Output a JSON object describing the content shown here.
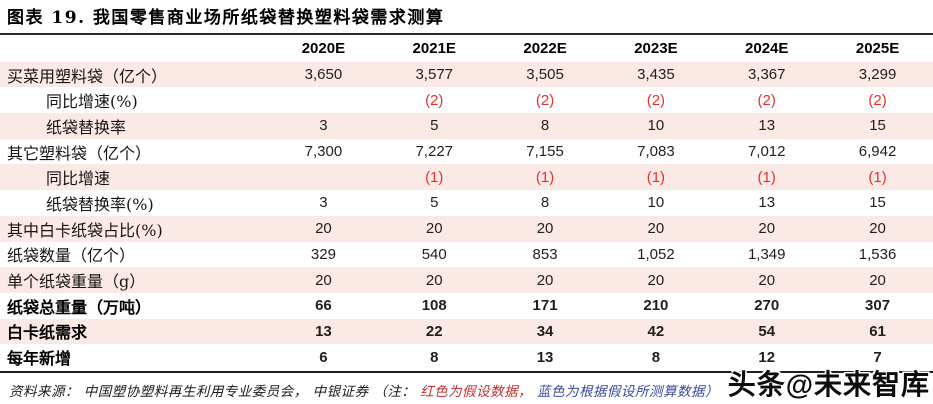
{
  "title": "图表 19. 我国零售商业场所纸袋替换塑料袋需求测算",
  "table": {
    "columns": [
      "2020E",
      "2021E",
      "2022E",
      "2023E",
      "2024E",
      "2025E"
    ],
    "rows": [
      {
        "label": "买菜用塑料袋（亿个）",
        "values": [
          "3,650",
          "3,577",
          "3,505",
          "3,435",
          "3,367",
          "3,299"
        ],
        "indent": false,
        "shaded": true,
        "bold": false,
        "red": false
      },
      {
        "label": "同比增速(%)",
        "values": [
          "",
          "(2)",
          "(2)",
          "(2)",
          "(2)",
          "(2)"
        ],
        "indent": true,
        "shaded": false,
        "bold": false,
        "red": true
      },
      {
        "label": "纸袋替换率",
        "values": [
          "3",
          "5",
          "8",
          "10",
          "13",
          "15"
        ],
        "indent": true,
        "shaded": true,
        "bold": false,
        "red": false
      },
      {
        "label": "其它塑料袋（亿个）",
        "values": [
          "7,300",
          "7,227",
          "7,155",
          "7,083",
          "7,012",
          "6,942"
        ],
        "indent": false,
        "shaded": false,
        "bold": false,
        "red": false
      },
      {
        "label": "同比增速",
        "values": [
          "",
          "(1)",
          "(1)",
          "(1)",
          "(1)",
          "(1)"
        ],
        "indent": true,
        "shaded": true,
        "bold": false,
        "red": true
      },
      {
        "label": "纸袋替换率(%)",
        "values": [
          "3",
          "5",
          "8",
          "10",
          "13",
          "15"
        ],
        "indent": true,
        "shaded": false,
        "bold": false,
        "red": false
      },
      {
        "label": "其中白卡纸袋占比(%)",
        "values": [
          "20",
          "20",
          "20",
          "20",
          "20",
          "20"
        ],
        "indent": false,
        "shaded": true,
        "bold": false,
        "red": false
      },
      {
        "label": "纸袋数量（亿个）",
        "values": [
          "329",
          "540",
          "853",
          "1,052",
          "1,349",
          "1,536"
        ],
        "indent": false,
        "shaded": false,
        "bold": false,
        "red": false
      },
      {
        "label": "单个纸袋重量（g）",
        "values": [
          "20",
          "20",
          "20",
          "20",
          "20",
          "20"
        ],
        "indent": false,
        "shaded": true,
        "bold": false,
        "red": false
      },
      {
        "label": "纸袋总重量（万吨）",
        "values": [
          "66",
          "108",
          "171",
          "210",
          "270",
          "307"
        ],
        "indent": false,
        "shaded": false,
        "bold": true,
        "red": false
      },
      {
        "label": "白卡纸需求",
        "values": [
          "13",
          "22",
          "34",
          "42",
          "54",
          "61"
        ],
        "indent": false,
        "shaded": true,
        "bold": true,
        "red": false
      },
      {
        "label": "每年新增",
        "values": [
          "6",
          "8",
          "13",
          "8",
          "12",
          "7"
        ],
        "indent": false,
        "shaded": false,
        "bold": true,
        "red": false
      }
    ]
  },
  "footer": {
    "segments": [
      {
        "text": "资料来源： 中国塑协塑料再生利用专业委员会， 中银证券 （注： ",
        "color": "#1a1a1a"
      },
      {
        "text": "红色为假设数据， ",
        "color": "#c03030"
      },
      {
        "text": "蓝色为根据假设所测算数据）",
        "color": "#3a4a9c"
      }
    ]
  },
  "watermark": "头条@未来智库",
  "colors": {
    "row_shade": "#fbe9e6",
    "red_value": "#e2322e",
    "rule": "#2b2b2b"
  }
}
